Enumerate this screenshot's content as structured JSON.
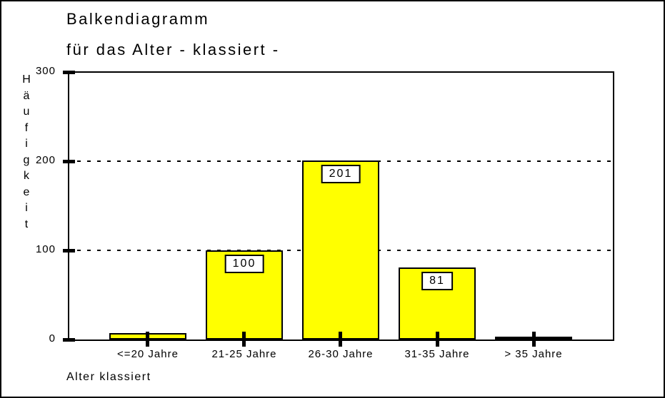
{
  "chart": {
    "title_line1": "Balkendiagramm",
    "title_line2": "für das Alter - klassiert -"
  },
  "chart_data": {
    "type": "bar",
    "title": "Balkendiagramm für das Alter - klassiert -",
    "categories": [
      "<=20 Jahre",
      "21-25 Jahre",
      "26-30 Jahre",
      "31-35 Jahre",
      "> 35 Jahre"
    ],
    "values": [
      7,
      100,
      201,
      81,
      3
    ],
    "data_labels": [
      null,
      "100",
      "201",
      "81",
      null
    ],
    "xlabel": "Alter klassiert",
    "ylabel": "Häufigkeit",
    "ylim": [
      0,
      300
    ],
    "yticks": [
      0,
      100,
      200,
      300
    ],
    "gridlines_at": [
      100,
      200
    ],
    "grid_style": "dashed",
    "legend": "none",
    "bar_color": "#FFFF00",
    "bar_border_color": "#000000",
    "background_color": "#FFFFFF",
    "text_color": "#000000"
  }
}
